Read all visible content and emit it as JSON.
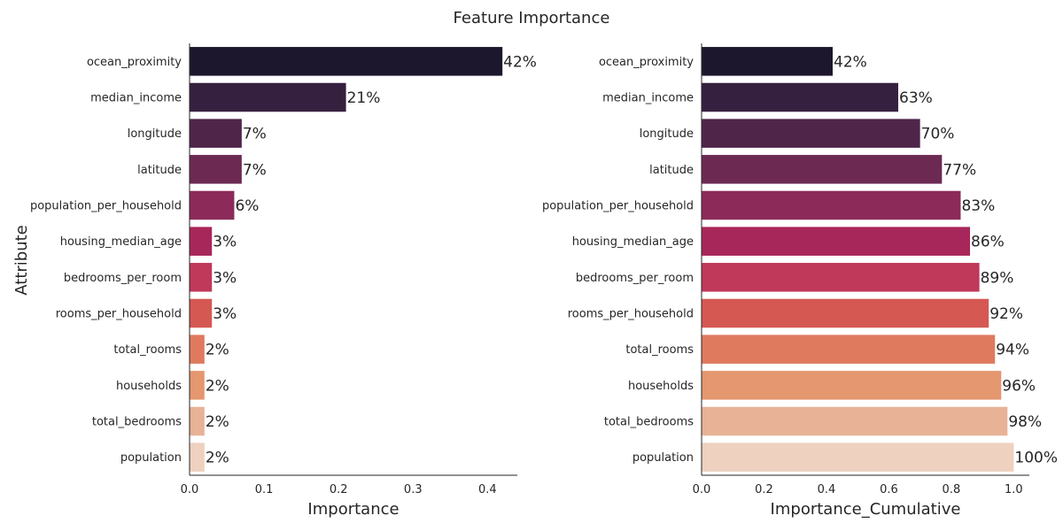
{
  "chart_data": {
    "type": "bar",
    "title": "Feature Importance",
    "ylabel": "Attribute",
    "categories": [
      "ocean_proximity",
      "median_income",
      "longitude",
      "latitude",
      "population_per_household",
      "housing_median_age",
      "bedrooms_per_room",
      "rooms_per_household",
      "total_rooms",
      "households",
      "total_bedrooms",
      "population"
    ],
    "colors": [
      "#1d172d",
      "#36203f",
      "#50254a",
      "#6c2a53",
      "#8c2a59",
      "#a8275a",
      "#c0385a",
      "#d55853",
      "#df7a5e",
      "#e5976f",
      "#e8b296",
      "#eed1bf"
    ],
    "panels": [
      {
        "xlabel": "Importance",
        "orientation": "horizontal",
        "xlim": [
          0,
          0.44
        ],
        "xticks": [
          "0.0",
          "0.1",
          "0.2",
          "0.3",
          "0.4"
        ],
        "xtick_values": [
          0,
          0.1,
          0.2,
          0.3,
          0.4
        ],
        "values": [
          0.42,
          0.21,
          0.07,
          0.07,
          0.06,
          0.03,
          0.03,
          0.03,
          0.02,
          0.02,
          0.02,
          0.02
        ],
        "data_labels": [
          "42%",
          "21%",
          "7%",
          "7%",
          "6%",
          "3%",
          "3%",
          "3%",
          "2%",
          "2%",
          "2%",
          "2%"
        ]
      },
      {
        "xlabel": "Importance_Cumulative",
        "orientation": "horizontal",
        "xlim": [
          0,
          1.05
        ],
        "xticks": [
          "0.0",
          "0.2",
          "0.4",
          "0.6",
          "0.8",
          "1.0"
        ],
        "xtick_values": [
          0,
          0.2,
          0.4,
          0.6,
          0.8,
          1.0
        ],
        "values": [
          0.42,
          0.63,
          0.7,
          0.77,
          0.83,
          0.86,
          0.89,
          0.92,
          0.94,
          0.96,
          0.98,
          1.0
        ],
        "data_labels": [
          "42%",
          "63%",
          "70%",
          "77%",
          "83%",
          "86%",
          "89%",
          "92%",
          "94%",
          "96%",
          "98%",
          "100%"
        ]
      }
    ]
  }
}
